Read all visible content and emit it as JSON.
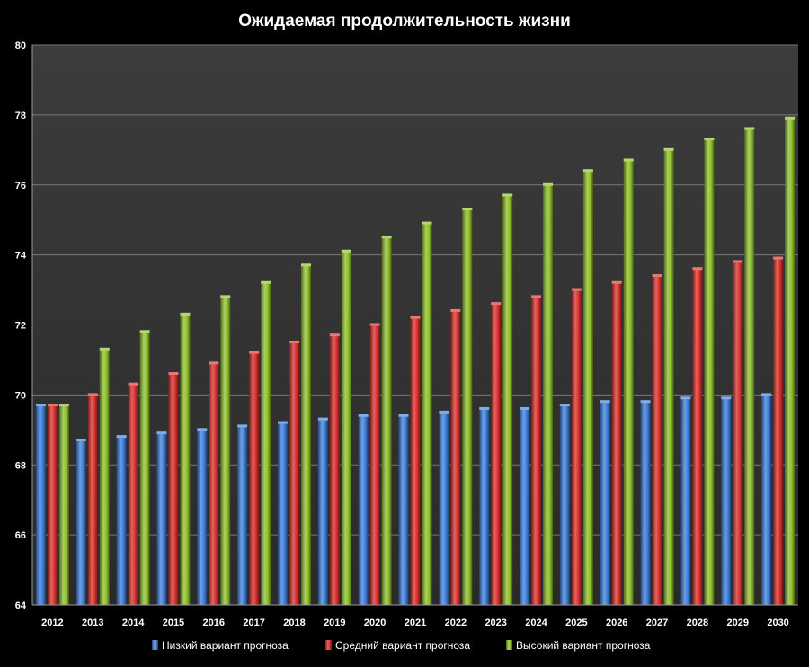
{
  "chart_data": {
    "type": "bar",
    "title": "Ожидаемая продолжительность жизни",
    "xlabel": "",
    "ylabel": "",
    "ylim": [
      64,
      80
    ],
    "yticks": [
      64,
      66,
      68,
      70,
      72,
      74,
      76,
      78,
      80
    ],
    "grid": true,
    "legend_position": "bottom",
    "categories": [
      "2012",
      "2013",
      "2014",
      "2015",
      "2016",
      "2017",
      "2018",
      "2019",
      "2020",
      "2021",
      "2022",
      "2023",
      "2024",
      "2025",
      "2026",
      "2027",
      "2028",
      "2029",
      "2030"
    ],
    "series": [
      {
        "name": "Низкий вариант прогноза",
        "color": "#3f7fdc",
        "values": [
          69.7,
          68.7,
          68.8,
          68.9,
          69.0,
          69.1,
          69.2,
          69.3,
          69.4,
          69.4,
          69.5,
          69.6,
          69.6,
          69.7,
          69.8,
          69.8,
          69.9,
          69.9,
          70.0
        ]
      },
      {
        "name": "Средний вариант прогноза",
        "color": "#d9302c",
        "values": [
          69.7,
          70.0,
          70.3,
          70.6,
          70.9,
          71.2,
          71.5,
          71.7,
          72.0,
          72.2,
          72.4,
          72.6,
          72.8,
          73.0,
          73.2,
          73.4,
          73.6,
          73.8,
          73.9
        ]
      },
      {
        "name": "Высокий вариант прогноза",
        "color": "#8fc02a",
        "values": [
          69.7,
          71.3,
          71.8,
          72.3,
          72.8,
          73.2,
          73.7,
          74.1,
          74.5,
          74.9,
          75.3,
          75.7,
          76.0,
          76.4,
          76.7,
          77.0,
          77.3,
          77.6,
          77.9
        ]
      }
    ]
  }
}
